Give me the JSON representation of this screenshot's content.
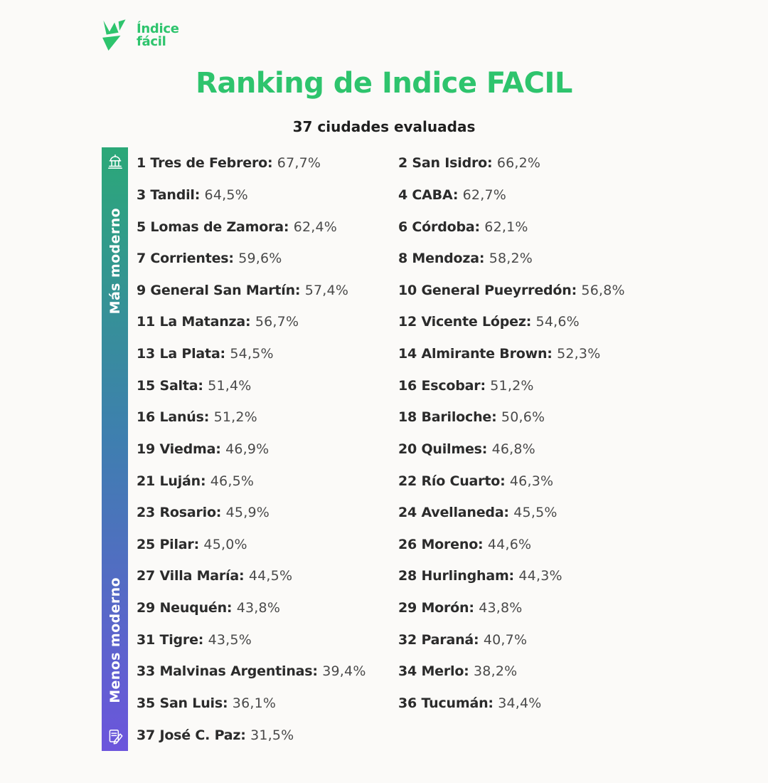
{
  "brand": {
    "line1": "Índice",
    "line2": "fácil"
  },
  "header": {
    "title": "Ranking de Indice FACIL",
    "subtitle": "37 ciudades evaluadas"
  },
  "colors": {
    "brand_green": "#2ec46d",
    "label_dark": "#2b2b2b",
    "value_gray": "#4a4a4a",
    "bar_gradient_top": "#2BA878",
    "bar_gradient_mid": "#3E7FAF",
    "bar_gradient_bottom": "#6C55DC"
  },
  "chart_data": {
    "type": "table",
    "title": "Ranking de Indice FACIL",
    "subtitle": "37 ciudades evaluadas",
    "unit": "%",
    "scale": {
      "top_label": "Más moderno",
      "bottom_label": "Menos moderno",
      "top_icon": "city-building-icon",
      "bottom_icon": "document-pencil-icon"
    },
    "entries": [
      {
        "rank": "1",
        "city": "Tres de Febrero",
        "value": 67.7,
        "display": "67,7%"
      },
      {
        "rank": "2",
        "city": "San Isidro",
        "value": 66.2,
        "display": "66,2%"
      },
      {
        "rank": "3",
        "city": "Tandil",
        "value": 64.5,
        "display": "64,5%"
      },
      {
        "rank": "4",
        "city": "CABA",
        "value": 62.7,
        "display": "62,7%"
      },
      {
        "rank": "5",
        "city": "Lomas de Zamora",
        "value": 62.4,
        "display": "62,4%"
      },
      {
        "rank": "6",
        "city": "Córdoba",
        "value": 62.1,
        "display": "62,1%"
      },
      {
        "rank": "7",
        "city": "Corrientes",
        "value": 59.6,
        "display": "59,6%"
      },
      {
        "rank": "8",
        "city": "Mendoza",
        "value": 58.2,
        "display": "58,2%"
      },
      {
        "rank": "9",
        "city": "General San Martín",
        "value": 57.4,
        "display": "57,4%"
      },
      {
        "rank": "10",
        "city": "General Pueyrredón",
        "value": 56.8,
        "display": "56,8%"
      },
      {
        "rank": "11",
        "city": "La Matanza",
        "value": 56.7,
        "display": "56,7%"
      },
      {
        "rank": "12",
        "city": "Vicente López",
        "value": 54.6,
        "display": "54,6%"
      },
      {
        "rank": "13",
        "city": "La Plata",
        "value": 54.5,
        "display": "54,5%"
      },
      {
        "rank": "14",
        "city": "Almirante Brown",
        "value": 52.3,
        "display": "52,3%"
      },
      {
        "rank": "15",
        "city": "Salta",
        "value": 51.4,
        "display": "51,4%"
      },
      {
        "rank": "16",
        "city": "Escobar",
        "value": 51.2,
        "display": "51,2%"
      },
      {
        "rank": "16",
        "city": "Lanús",
        "value": 51.2,
        "display": "51,2%"
      },
      {
        "rank": "18",
        "city": "Bariloche",
        "value": 50.6,
        "display": "50,6%"
      },
      {
        "rank": "19",
        "city": "Viedma",
        "value": 46.9,
        "display": "46,9%"
      },
      {
        "rank": "20",
        "city": "Quilmes",
        "value": 46.8,
        "display": "46,8%"
      },
      {
        "rank": "21",
        "city": "Luján",
        "value": 46.5,
        "display": "46,5%"
      },
      {
        "rank": "22",
        "city": "Río Cuarto",
        "value": 46.3,
        "display": "46,3%"
      },
      {
        "rank": "23",
        "city": "Rosario",
        "value": 45.9,
        "display": "45,9%"
      },
      {
        "rank": "24",
        "city": "Avellaneda",
        "value": 45.5,
        "display": "45,5%"
      },
      {
        "rank": "25",
        "city": "Pilar",
        "value": 45.0,
        "display": "45,0%"
      },
      {
        "rank": "26",
        "city": "Moreno",
        "value": 44.6,
        "display": "44,6%"
      },
      {
        "rank": "27",
        "city": "Villa María",
        "value": 44.5,
        "display": "44,5%"
      },
      {
        "rank": "28",
        "city": "Hurlingham",
        "value": 44.3,
        "display": "44,3%"
      },
      {
        "rank": "29",
        "city": "Neuquén",
        "value": 43.8,
        "display": "43,8%"
      },
      {
        "rank": "29",
        "city": "Morón",
        "value": 43.8,
        "display": "43,8%"
      },
      {
        "rank": "31",
        "city": "Tigre",
        "value": 43.5,
        "display": "43,5%"
      },
      {
        "rank": "32",
        "city": "Paraná",
        "value": 40.7,
        "display": "40,7%"
      },
      {
        "rank": "33",
        "city": "Malvinas Argentinas",
        "value": 39.4,
        "display": "39,4%"
      },
      {
        "rank": "34",
        "city": "Merlo",
        "value": 38.2,
        "display": "38,2%"
      },
      {
        "rank": "35",
        "city": "San Luis",
        "value": 36.1,
        "display": "36,1%"
      },
      {
        "rank": "36",
        "city": "Tucumán",
        "value": 34.4,
        "display": "34,4%"
      },
      {
        "rank": "37",
        "city": "José C. Paz",
        "value": 31.5,
        "display": "31,5%"
      }
    ]
  }
}
